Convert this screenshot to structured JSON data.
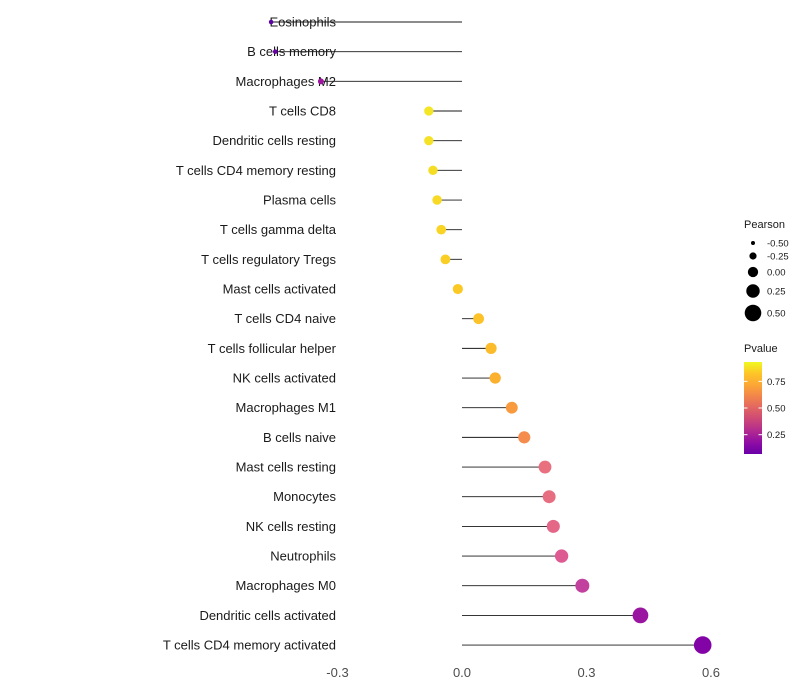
{
  "chart_data": {
    "type": "scatter",
    "variant": "lollipop",
    "title": "",
    "xlabel": "",
    "ylabel": "",
    "xlim": [
      -0.52,
      0.66
    ],
    "grid": false,
    "legend_position": "right",
    "x_ticks": [
      {
        "value": -0.3,
        "label": "-0.3"
      },
      {
        "value": 0.0,
        "label": "0.0"
      },
      {
        "value": 0.3,
        "label": "0.3"
      },
      {
        "value": 0.6,
        "label": "0.6"
      }
    ],
    "points": [
      {
        "label": "Eosinophils",
        "pearson": -0.46,
        "color": "#5C01A6"
      },
      {
        "label": "B cells memory",
        "pearson": -0.45,
        "color": "#6A00A8"
      },
      {
        "label": "Macrophages M2",
        "pearson": -0.34,
        "color": "#9C179E"
      },
      {
        "label": "T cells CD8",
        "pearson": -0.08,
        "color": "#F4E625"
      },
      {
        "label": "Dendritic cells resting",
        "pearson": -0.08,
        "color": "#F5E226"
      },
      {
        "label": "T cells CD4 memory resting",
        "pearson": -0.07,
        "color": "#F6DD25"
      },
      {
        "label": "Plasma cells",
        "pearson": -0.06,
        "color": "#F8D925"
      },
      {
        "label": "T cells gamma delta",
        "pearson": -0.05,
        "color": "#F9D425"
      },
      {
        "label": "T cells regulatory  Tregs",
        "pearson": -0.04,
        "color": "#FACF25"
      },
      {
        "label": "Mast cells activated",
        "pearson": -0.01,
        "color": "#FBC926"
      },
      {
        "label": "T cells CD4 naive",
        "pearson": 0.04,
        "color": "#FCC227"
      },
      {
        "label": "T cells follicular helper",
        "pearson": 0.07,
        "color": "#FCBB2A"
      },
      {
        "label": "NK cells activated",
        "pearson": 0.08,
        "color": "#FBB12E"
      },
      {
        "label": "Macrophages M1",
        "pearson": 0.12,
        "color": "#F99A3E"
      },
      {
        "label": "B cells naive",
        "pearson": 0.15,
        "color": "#F58B4C"
      },
      {
        "label": "Mast cells resting",
        "pearson": 0.2,
        "color": "#E8707F"
      },
      {
        "label": "Monocytes",
        "pearson": 0.21,
        "color": "#E76E81"
      },
      {
        "label": "NK cells resting",
        "pearson": 0.22,
        "color": "#E46787"
      },
      {
        "label": "Neutrophils",
        "pearson": 0.24,
        "color": "#DE5A92"
      },
      {
        "label": "Macrophages M0",
        "pearson": 0.29,
        "color": "#C2409E"
      },
      {
        "label": "Dendritic cells activated",
        "pearson": 0.43,
        "color": "#9B16A0"
      },
      {
        "label": "T cells CD4 memory activated",
        "pearson": 0.58,
        "color": "#8204A7"
      }
    ],
    "legend": {
      "size": {
        "title": "Pearson",
        "entries": [
          {
            "value": -0.5,
            "label": "-0.50"
          },
          {
            "value": -0.25,
            "label": "-0.25"
          },
          {
            "value": 0.0,
            "label": "0.00"
          },
          {
            "value": 0.25,
            "label": "0.25"
          },
          {
            "value": 0.5,
            "label": "0.50"
          }
        ]
      },
      "color": {
        "title": "Pvalue",
        "tick_labels": [
          "0.75",
          "0.50",
          "0.25"
        ],
        "gradient": [
          "#F0F921",
          "#FDC527",
          "#FCA636",
          "#F1844B",
          "#E16462",
          "#CC4778",
          "#B12A90",
          "#8F0DA4",
          "#6A00A8"
        ]
      }
    }
  }
}
